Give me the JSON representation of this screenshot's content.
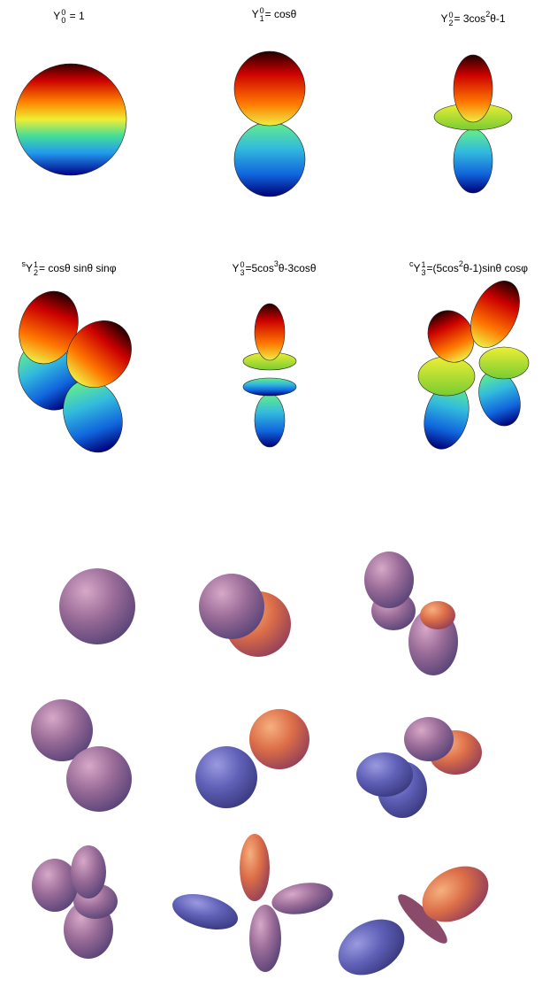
{
  "panels": [
    {
      "label": [
        {
          "text": "Y"
        },
        {
          "sup": "0",
          "sub": "0"
        },
        {
          "text": " = 1"
        }
      ]
    },
    {
      "label": [
        {
          "text": "Y"
        },
        {
          "sup": "0",
          "sub": "1"
        },
        {
          "text": "=  cosθ"
        }
      ]
    },
    {
      "label": [
        {
          "text": "Y"
        },
        {
          "sup": "0",
          "sub": "2"
        },
        {
          "text": "=  3cos"
        },
        {
          "sup": "2"
        },
        {
          "text": "θ-1"
        }
      ]
    },
    {
      "label": [
        {
          "sup": "s"
        },
        {
          "text": "Y"
        },
        {
          "sup": "1",
          "sub": "2"
        },
        {
          "text": "=  cosθ sinθ sinφ"
        }
      ]
    },
    {
      "label": [
        {
          "text": "Y"
        },
        {
          "sup": "0",
          "sub": "3"
        },
        {
          "text": "=5cos"
        },
        {
          "sup": "3"
        },
        {
          "text": "θ-3cosθ"
        }
      ]
    },
    {
      "label": [
        {
          "sup": "c"
        },
        {
          "text": "Y"
        },
        {
          "sup": "1",
          "sub": "3"
        },
        {
          "text": "=(5cos"
        },
        {
          "sup": "2"
        },
        {
          "text": "θ-1)sinθ cosφ"
        }
      ]
    }
  ]
}
